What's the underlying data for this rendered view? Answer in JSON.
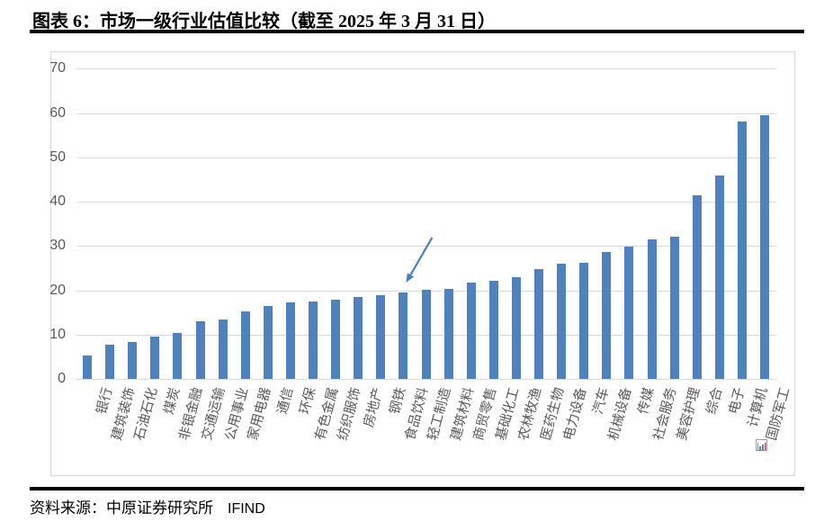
{
  "header": {
    "title": "图表 6：市场一级行业估值比较（截至 2025 年 3 月 31 日）"
  },
  "chart_data": {
    "type": "bar",
    "title": "市场一级行业估值比较（截至 2025 年 3 月 31 日）",
    "categories": [
      "银行",
      "建筑装饰",
      "石油石化",
      "煤炭",
      "非银金融",
      "交通运输",
      "公用事业",
      "家用电器",
      "通信",
      "环保",
      "有色金属",
      "纺织服饰",
      "房地产",
      "钢铁",
      "食品饮料",
      "轻工制造",
      "建筑材料",
      "商贸零售",
      "基础化工",
      "农林牧渔",
      "医药生物",
      "电力设备",
      "汽车",
      "机械设备",
      "传媒",
      "社会服务",
      "美容护理",
      "综合",
      "电子",
      "计算机",
      "国防军工"
    ],
    "values": [
      5.3,
      7.7,
      8.3,
      9.5,
      10.3,
      13.0,
      13.4,
      15.2,
      16.5,
      17.2,
      17.4,
      17.8,
      18.4,
      18.8,
      19.5,
      20.2,
      20.4,
      21.8,
      22.1,
      23.0,
      24.7,
      26.0,
      26.2,
      28.6,
      29.8,
      31.4,
      32.1,
      41.5,
      45.8,
      58.0,
      59.5
    ],
    "xlabel": "",
    "ylabel": "",
    "ylim": [
      0,
      70
    ],
    "yticks": [
      0,
      10,
      20,
      30,
      40,
      50,
      60,
      70
    ],
    "grid": true,
    "legend": false,
    "bar_color": "#4f81bd",
    "gridline_color": "#d9d9d9",
    "tick_color": "#595959",
    "annotation": {
      "type": "arrow",
      "target_category": "食品饮料",
      "color": "#4f81bd"
    }
  },
  "icons": {
    "embedded_object_icon": "mini-chart-placeholder"
  },
  "footer": {
    "source_label": "资料来源：中原证券研究所",
    "source_provider": "IFIND"
  }
}
